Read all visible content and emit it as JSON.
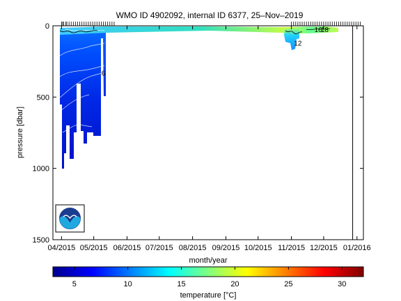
{
  "chart_data": {
    "type": "heatmap",
    "title": "WMO ID 4902092, internal ID 6377, 25–Nov–2019",
    "xlabel": "month/year",
    "ylabel": "pressure [dbar]",
    "x_ticks": [
      "04/2015",
      "05/2015",
      "06/2015",
      "07/2015",
      "08/2015",
      "09/2015",
      "10/2015",
      "11/2015",
      "12/2015",
      "01/2016"
    ],
    "x_range": [
      "2015-03-24",
      "2016-01-07"
    ],
    "y_ticks": [
      0,
      500,
      1000,
      1500
    ],
    "y_range": [
      0,
      1500
    ],
    "y_reversed": true,
    "grid": false,
    "vertical_line_date": "2015-12-28",
    "profile_dates": [
      "2015-04-01",
      "2015-04-02",
      "2015-04-03",
      "2015-04-05",
      "2015-04-06",
      "2015-04-08",
      "2015-04-10",
      "2015-04-12",
      "2015-04-14",
      "2015-04-16",
      "2015-04-18",
      "2015-04-20",
      "2015-04-22",
      "2015-04-24",
      "2015-04-26",
      "2015-04-28",
      "2015-04-30",
      "2015-05-02",
      "2015-05-04",
      "2015-05-06",
      "2015-05-08",
      "2015-05-10",
      "2015-05-12",
      "2015-05-14",
      "2015-05-16",
      "2015-05-18",
      "2015-05-20",
      "2015-11-01",
      "2015-11-03",
      "2015-11-05",
      "2015-11-07",
      "2015-11-09",
      "2015-11-11",
      "2015-11-13",
      "2015-11-15",
      "2015-11-17",
      "2015-11-19",
      "2015-11-21",
      "2015-11-23",
      "2015-11-25",
      "2015-11-27",
      "2015-11-29",
      "2015-12-01",
      "2015-12-03",
      "2015-12-05",
      "2015-12-07",
      "2015-12-09",
      "2015-12-11",
      "2015-12-13",
      "2015-12-15",
      "2015-12-17",
      "2015-12-19",
      "2015-12-21",
      "2015-12-23",
      "2015-12-25",
      "2015-12-27",
      "2015-12-29",
      "2015-12-31",
      "2016-01-02",
      "2016-01-04"
    ],
    "contour_labels": [
      {
        "text": "6",
        "date": "2015-05-10",
        "pressure": 330
      },
      {
        "text": "12",
        "date": "2015-11-07",
        "pressure": 120
      },
      {
        "text": "18",
        "date": "2015-12-02",
        "pressure": 25
      },
      {
        "text": "16",
        "date": "2015-11-26",
        "pressure": 25
      }
    ],
    "colorbar": {
      "label": "temperature [°C]",
      "ticks": [
        5,
        10,
        15,
        20,
        25,
        30
      ],
      "range": [
        3,
        32
      ],
      "colormap": "jet"
    },
    "logo": "noaa-logo"
  }
}
